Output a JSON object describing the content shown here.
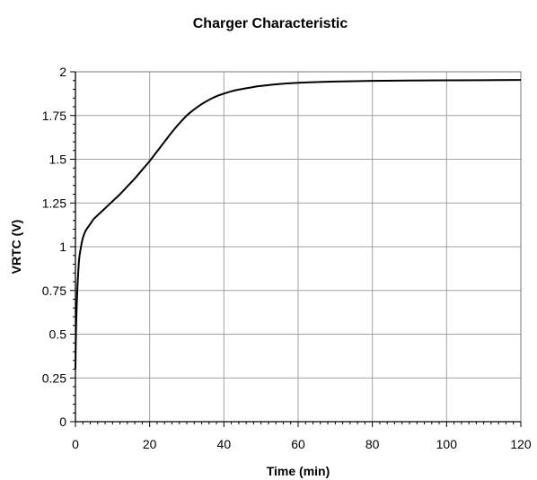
{
  "chart_data": {
    "type": "line",
    "title": "Charger Characteristic",
    "xlabel": "Time (min)",
    "ylabel": "VRTC (V)",
    "xlim": [
      0,
      120
    ],
    "ylim": [
      0,
      2
    ],
    "x_ticks": [
      0,
      20,
      40,
      60,
      80,
      100,
      120
    ],
    "x_tick_labels": [
      "0",
      "20",
      "40",
      "60",
      "80",
      "100",
      "120"
    ],
    "x_minor_step": 2,
    "y_ticks": [
      0,
      0.25,
      0.5,
      0.75,
      1,
      1.25,
      1.5,
      1.75,
      2
    ],
    "y_tick_labels": [
      "0",
      "0.25",
      "0.5",
      "0.75",
      "1",
      "1.25",
      "1.5",
      "1.75",
      "2"
    ],
    "y_minor_step": 0.05,
    "grid": true,
    "legend": "none",
    "series": [
      {
        "color": "#000000",
        "x": [
          0,
          0.1,
          0.25,
          0.5,
          0.75,
          1,
          1.5,
          2,
          2.5,
          3,
          3.5,
          4,
          5,
          6,
          8,
          10,
          12,
          14,
          16,
          18,
          20,
          22,
          24,
          26,
          28,
          30,
          32,
          34,
          36,
          38,
          40,
          42,
          44,
          46,
          48,
          50,
          55,
          60,
          65,
          70,
          80,
          90,
          100,
          110,
          120
        ],
        "y": [
          0.3,
          0.46,
          0.6,
          0.75,
          0.85,
          0.93,
          1.0,
          1.05,
          1.08,
          1.1,
          1.115,
          1.13,
          1.16,
          1.18,
          1.22,
          1.26,
          1.3,
          1.345,
          1.39,
          1.44,
          1.49,
          1.545,
          1.6,
          1.655,
          1.705,
          1.75,
          1.785,
          1.815,
          1.84,
          1.86,
          1.875,
          1.888,
          1.898,
          1.906,
          1.913,
          1.919,
          1.93,
          1.937,
          1.941,
          1.944,
          1.948,
          1.95,
          1.951,
          1.952,
          1.953
        ]
      }
    ]
  }
}
